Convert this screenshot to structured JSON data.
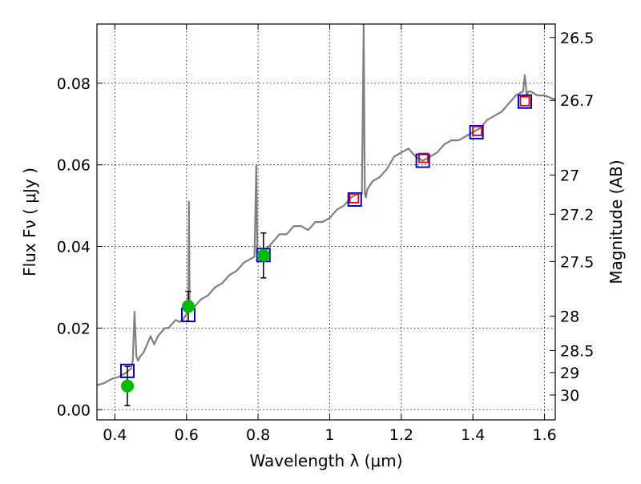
{
  "chart_data": {
    "type": "scatter",
    "xlabel": "Wavelength  λ (μm)",
    "ylabel": "Flux  Fν  ( μJy )",
    "ylabel_right": "Magnitude (AB)",
    "xlim": [
      0.35,
      1.63
    ],
    "ylim": [
      -0.0025,
      0.0945
    ],
    "grid": true,
    "x_ticks": [
      {
        "value": 0.4,
        "label": "0.4"
      },
      {
        "value": 0.6,
        "label": "0.6"
      },
      {
        "value": 0.8,
        "label": "0.8"
      },
      {
        "value": 1.0,
        "label": "1"
      },
      {
        "value": 1.2,
        "label": "1.2"
      },
      {
        "value": 1.4,
        "label": "1.4"
      },
      {
        "value": 1.6,
        "label": "1.6"
      }
    ],
    "y_ticks": [
      {
        "value": 0.0,
        "label": "0.00"
      },
      {
        "value": 0.02,
        "label": "0.02"
      },
      {
        "value": 0.04,
        "label": "0.04"
      },
      {
        "value": 0.06,
        "label": "0.06"
      },
      {
        "value": 0.08,
        "label": "0.08"
      }
    ],
    "mag_ticks": [
      {
        "label": "26.5",
        "flux": 0.0912
      },
      {
        "label": "26.7",
        "flux": 0.0758
      },
      {
        "label": "27",
        "flux": 0.0575
      },
      {
        "label": "27.2",
        "flux": 0.0479
      },
      {
        "label": "27.5",
        "flux": 0.0363
      },
      {
        "label": "28",
        "flux": 0.0229
      },
      {
        "label": "28.5",
        "flux": 0.0145
      },
      {
        "label": "29",
        "flux": 0.0091
      },
      {
        "label": "30",
        "flux": 0.0036
      }
    ],
    "series": [
      {
        "kind": "model_spectrum",
        "color": "#808080",
        "x": [
          0.35,
          0.37,
          0.39,
          0.41,
          0.43,
          0.445,
          0.45,
          0.455,
          0.46,
          0.465,
          0.47,
          0.48,
          0.49,
          0.5,
          0.51,
          0.52,
          0.53,
          0.54,
          0.55,
          0.56,
          0.57,
          0.58,
          0.59,
          0.6,
          0.605,
          0.607,
          0.609,
          0.611,
          0.62,
          0.64,
          0.66,
          0.68,
          0.7,
          0.72,
          0.74,
          0.76,
          0.78,
          0.79,
          0.795,
          0.798,
          0.801,
          0.81,
          0.82,
          0.84,
          0.86,
          0.88,
          0.9,
          0.92,
          0.94,
          0.96,
          0.98,
          1.0,
          1.02,
          1.04,
          1.06,
          1.08,
          1.09,
          1.095,
          1.098,
          1.101,
          1.105,
          1.12,
          1.14,
          1.16,
          1.18,
          1.2,
          1.22,
          1.24,
          1.26,
          1.28,
          1.3,
          1.32,
          1.34,
          1.36,
          1.38,
          1.4,
          1.42,
          1.44,
          1.46,
          1.48,
          1.5,
          1.52,
          1.54,
          1.545,
          1.55,
          1.555,
          1.56,
          1.58,
          1.6,
          1.63
        ],
        "y": [
          0.006,
          0.0065,
          0.0075,
          0.008,
          0.009,
          0.01,
          0.012,
          0.024,
          0.013,
          0.012,
          0.013,
          0.014,
          0.016,
          0.018,
          0.016,
          0.018,
          0.019,
          0.02,
          0.02,
          0.021,
          0.022,
          0.0215,
          0.022,
          0.0235,
          0.024,
          0.051,
          0.0245,
          0.024,
          0.025,
          0.027,
          0.028,
          0.03,
          0.031,
          0.033,
          0.034,
          0.036,
          0.037,
          0.0375,
          0.06,
          0.0375,
          0.038,
          0.038,
          0.039,
          0.041,
          0.043,
          0.043,
          0.045,
          0.045,
          0.044,
          0.046,
          0.046,
          0.047,
          0.049,
          0.05,
          0.052,
          0.053,
          0.053,
          0.0945,
          0.053,
          0.052,
          0.054,
          0.056,
          0.057,
          0.059,
          0.062,
          0.063,
          0.064,
          0.062,
          0.061,
          0.062,
          0.063,
          0.065,
          0.066,
          0.066,
          0.067,
          0.068,
          0.069,
          0.071,
          0.072,
          0.073,
          0.075,
          0.077,
          0.078,
          0.082,
          0.077,
          0.078,
          0.078,
          0.077,
          0.077,
          0.076
        ]
      },
      {
        "kind": "model_photometry",
        "marker": "square",
        "color": "#0000cc",
        "x": [
          0.435,
          0.605,
          0.815,
          1.07,
          1.26,
          1.41,
          1.545
        ],
        "y": [
          0.0095,
          0.0232,
          0.0379,
          0.0515,
          0.061,
          0.068,
          0.0755
        ]
      },
      {
        "kind": "observed_photometry",
        "marker": "circle",
        "color": "#00bb00",
        "x": [
          0.435,
          0.605,
          0.815
        ],
        "y": [
          0.0058,
          0.0253,
          0.0378
        ],
        "yerr": [
          0.0048,
          0.0037,
          0.0055
        ]
      },
      {
        "kind": "observed_photometry_ir",
        "marker": "square",
        "color": "#dd0000",
        "x": [
          1.068,
          1.262,
          1.412,
          1.545
        ],
        "y": [
          0.0518,
          0.0617,
          0.0683,
          0.0756
        ]
      }
    ]
  }
}
